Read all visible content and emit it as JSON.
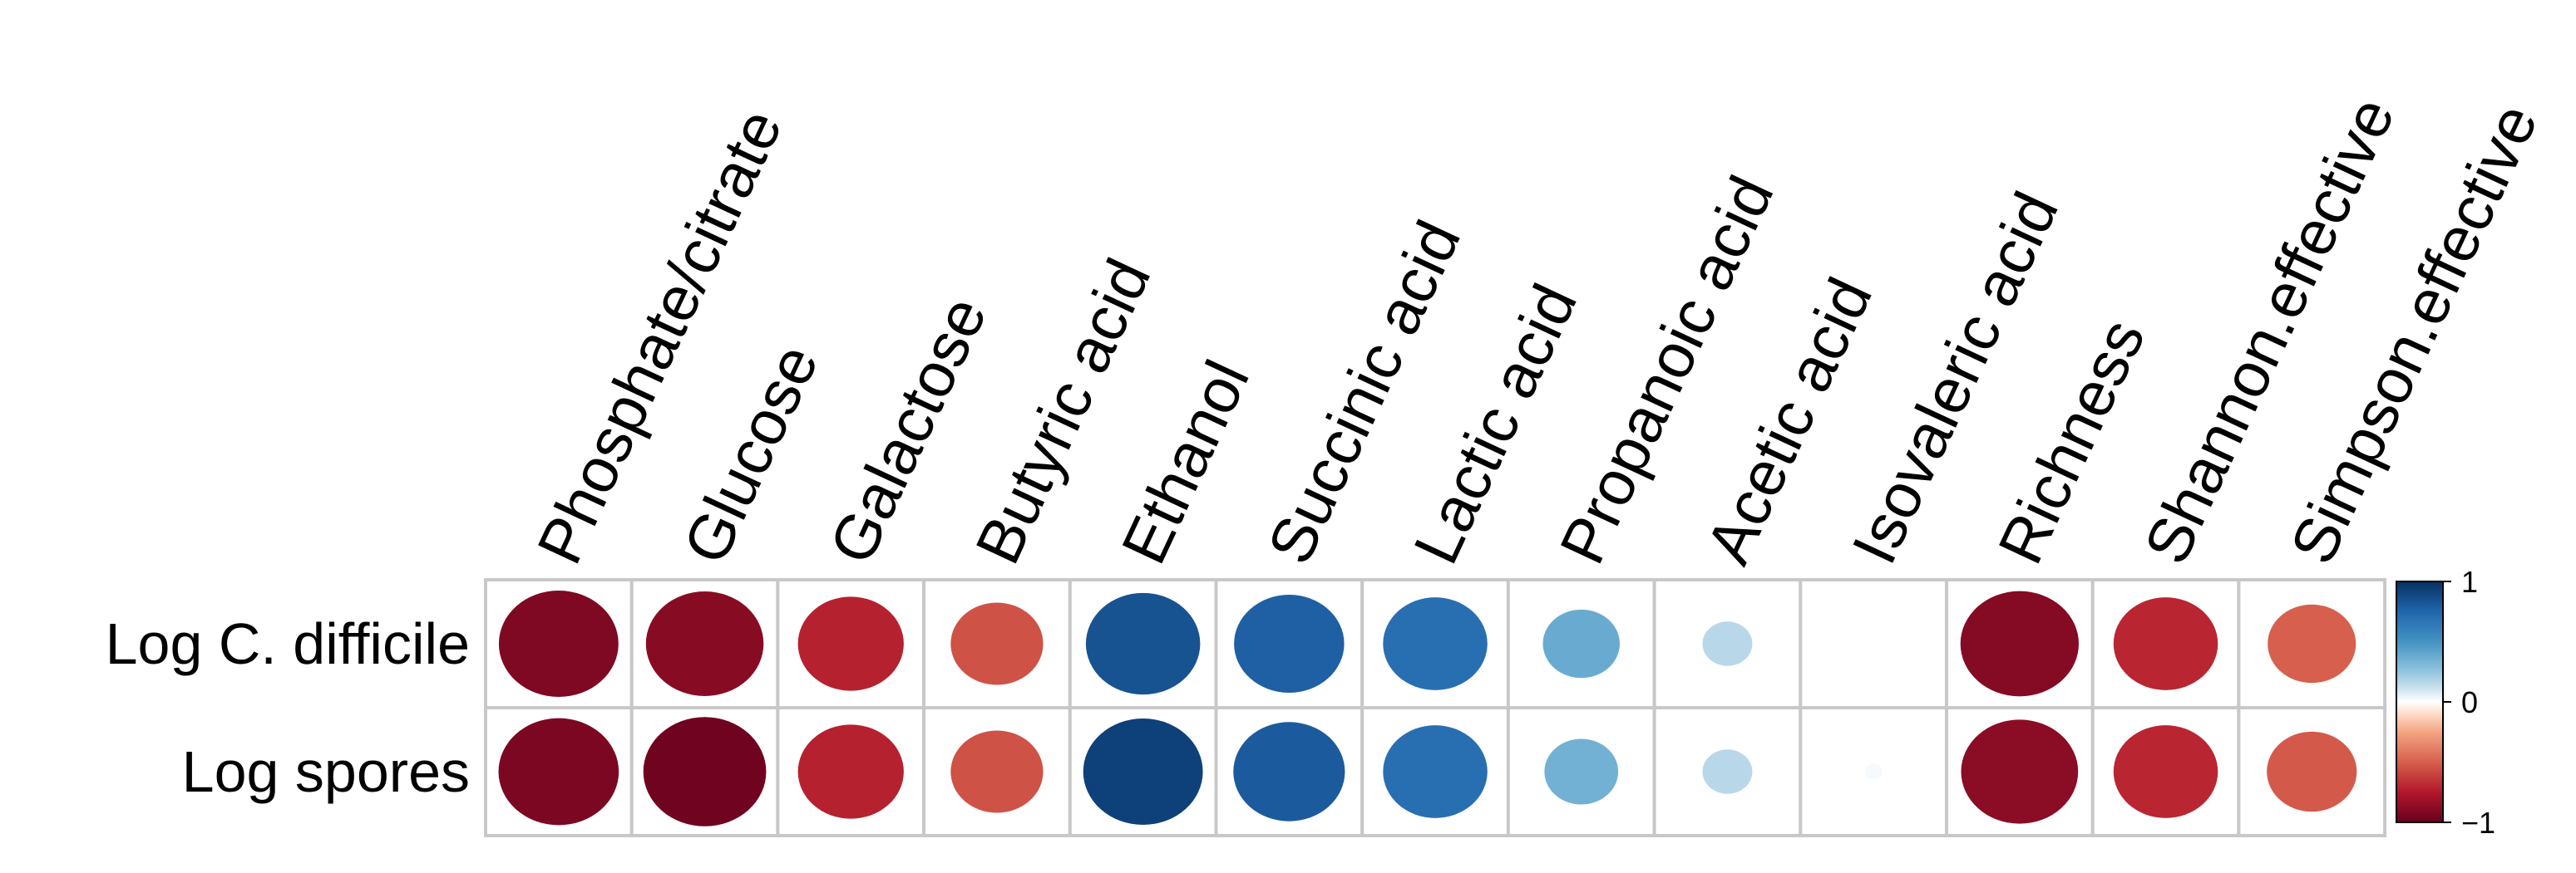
{
  "chart_data": {
    "type": "heatmap",
    "title": "",
    "xlabel": "",
    "ylabel": "",
    "columns": [
      "Phosphate/citrate",
      "Glucose",
      "Galactose",
      "Butyric acid",
      "Ethanol",
      "Succinic acid",
      "Lactic acid",
      "Propanoic acid",
      "Acetic acid",
      "Isovaleric acid",
      "Richness",
      "Shannon.effective",
      "Simpson.effective"
    ],
    "rows": [
      {
        "name": "Log C. difficile",
        "values": [
          -0.92,
          -0.89,
          -0.72,
          -0.55,
          0.84,
          0.78,
          0.7,
          0.38,
          0.16,
          0.0,
          -0.9,
          -0.7,
          -0.5
        ]
      },
      {
        "name": "Log spores",
        "values": [
          -0.93,
          -0.97,
          -0.72,
          -0.55,
          0.92,
          0.8,
          0.7,
          0.35,
          0.16,
          0.02,
          -0.88,
          -0.7,
          -0.52
        ]
      }
    ],
    "value_range": [
      -1,
      1
    ],
    "colorbar": {
      "ticks": [
        "1",
        "0",
        "−1"
      ],
      "colors": {
        "neg": "#67001f",
        "mid": "#ffffff",
        "pos": "#053061"
      }
    }
  }
}
